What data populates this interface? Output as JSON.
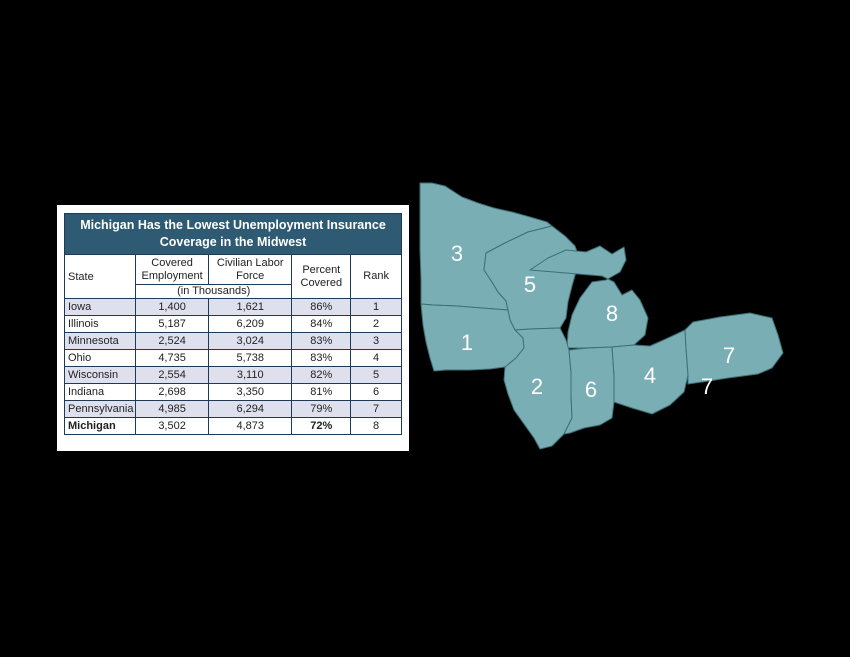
{
  "chart_data": {
    "type": "table",
    "title": "Michigan Has the Lowest Unemployment Insurance Coverage in the Midwest",
    "headers": {
      "state": "State",
      "covered": "Covered Employment",
      "labor": "Civilian Labor Force",
      "percent": "Percent Covered",
      "rank": "Rank",
      "units": "(in Thousands)"
    },
    "rows": [
      {
        "state": "Iowa",
        "covered": "1,400",
        "labor": "1,621",
        "percent": "86%",
        "rank": "1"
      },
      {
        "state": "Illinois",
        "covered": "5,187",
        "labor": "6,209",
        "percent": "84%",
        "rank": "2"
      },
      {
        "state": "Minnesota",
        "covered": "2,524",
        "labor": "3,024",
        "percent": "83%",
        "rank": "3"
      },
      {
        "state": "Ohio",
        "covered": "4,735",
        "labor": "5,738",
        "percent": "83%",
        "rank": "4"
      },
      {
        "state": "Wisconsin",
        "covered": "2,554",
        "labor": "3,110",
        "percent": "82%",
        "rank": "5"
      },
      {
        "state": "Indiana",
        "covered": "2,698",
        "labor": "3,350",
        "percent": "81%",
        "rank": "6"
      },
      {
        "state": "Pennsylvania",
        "covered": "4,985",
        "labor": "6,294",
        "percent": "79%",
        "rank": "7"
      },
      {
        "state": "Michigan",
        "covered": "3,502",
        "labor": "4,873",
        "percent": "72%",
        "rank": "8"
      }
    ],
    "highlight_row": "Michigan"
  },
  "map": {
    "fill_color": "#78aeb4",
    "border_color": "#3f6f76",
    "labels": [
      {
        "state": "Minnesota",
        "rank": "3"
      },
      {
        "state": "Wisconsin",
        "rank": "5"
      },
      {
        "state": "Iowa",
        "rank": "1"
      },
      {
        "state": "Michigan",
        "rank": "8"
      },
      {
        "state": "Illinois",
        "rank": "2"
      },
      {
        "state": "Indiana",
        "rank": "6"
      },
      {
        "state": "Ohio",
        "rank": "4"
      },
      {
        "state": "Pennsylvania",
        "rank": "7"
      }
    ],
    "stray_label": "7"
  }
}
